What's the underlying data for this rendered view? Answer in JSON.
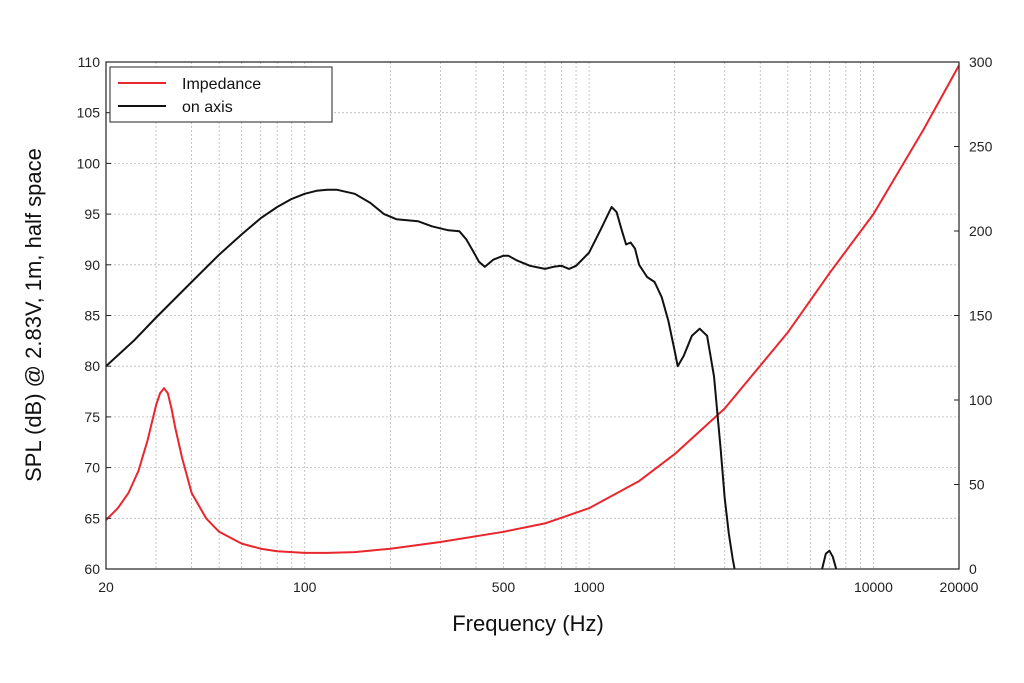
{
  "chart_data": {
    "type": "line",
    "xlabel": "Frequency (Hz)",
    "ylabel": "SPL (dB) @ 2.83V, 1m, half space",
    "x_scale": "log",
    "xlim": [
      20,
      20000
    ],
    "ylim": [
      60,
      110
    ],
    "y2lim": [
      0,
      300
    ],
    "x_tick_labels": [
      "20",
      "100",
      "500",
      "1000",
      "10000",
      "20000"
    ],
    "y_tick_labels": [
      "60",
      "65",
      "70",
      "75",
      "80",
      "85",
      "90",
      "95",
      "100",
      "105",
      "110"
    ],
    "y2_tick_labels": [
      "0",
      "50",
      "100",
      "150",
      "200",
      "250",
      "300"
    ],
    "grid": true,
    "legend_position": "top-left",
    "colors": {
      "impedance": "#e8262b",
      "spl": "#111111",
      "grid": "#b8b8b8"
    },
    "series": [
      {
        "name": "Impedance",
        "axis": "right",
        "color": "#e8262b",
        "points": [
          [
            20,
            29
          ],
          [
            22,
            36
          ],
          [
            24,
            45
          ],
          [
            26,
            58
          ],
          [
            28,
            76
          ],
          [
            30,
            97
          ],
          [
            31,
            104
          ],
          [
            32,
            107
          ],
          [
            33,
            104
          ],
          [
            34,
            95
          ],
          [
            35,
            84
          ],
          [
            37,
            66
          ],
          [
            40,
            45
          ],
          [
            45,
            30
          ],
          [
            50,
            22
          ],
          [
            60,
            15
          ],
          [
            70,
            12
          ],
          [
            80,
            10.5
          ],
          [
            100,
            9.5
          ],
          [
            120,
            9.5
          ],
          [
            150,
            10
          ],
          [
            200,
            12
          ],
          [
            300,
            16
          ],
          [
            500,
            22
          ],
          [
            700,
            27
          ],
          [
            1000,
            36
          ],
          [
            1500,
            52
          ],
          [
            2000,
            68
          ],
          [
            3000,
            95
          ],
          [
            5000,
            140
          ],
          [
            7000,
            175
          ],
          [
            10000,
            210
          ],
          [
            15000,
            260
          ],
          [
            20000,
            298
          ]
        ]
      },
      {
        "name": "on axis",
        "axis": "left",
        "color": "#111111",
        "segments": [
          [
            [
              20,
              80
            ],
            [
              25,
              82.5
            ],
            [
              30,
              84.8
            ],
            [
              40,
              88.3
            ],
            [
              50,
              91
            ],
            [
              60,
              93
            ],
            [
              70,
              94.6
            ],
            [
              80,
              95.7
            ],
            [
              90,
              96.5
            ],
            [
              100,
              97
            ],
            [
              110,
              97.3
            ],
            [
              120,
              97.4
            ],
            [
              130,
              97.4
            ],
            [
              150,
              97
            ],
            [
              170,
              96.1
            ],
            [
              190,
              95
            ],
            [
              210,
              94.5
            ],
            [
              250,
              94.3
            ],
            [
              280,
              93.8
            ],
            [
              320,
              93.4
            ],
            [
              350,
              93.3
            ],
            [
              370,
              92.5
            ],
            [
              390,
              91.4
            ],
            [
              410,
              90.3
            ],
            [
              430,
              89.8
            ],
            [
              460,
              90.5
            ],
            [
              500,
              90.9
            ],
            [
              520,
              90.9
            ],
            [
              560,
              90.4
            ],
            [
              620,
              89.9
            ],
            [
              700,
              89.6
            ],
            [
              750,
              89.8
            ],
            [
              800,
              89.9
            ],
            [
              850,
              89.6
            ],
            [
              900,
              89.9
            ],
            [
              1000,
              91.2
            ],
            [
              1100,
              93.5
            ],
            [
              1200,
              95.7
            ],
            [
              1250,
              95.2
            ],
            [
              1300,
              93.5
            ],
            [
              1350,
              92
            ],
            [
              1400,
              92.2
            ],
            [
              1450,
              91.6
            ],
            [
              1500,
              90
            ],
            [
              1600,
              88.8
            ],
            [
              1700,
              88.3
            ],
            [
              1800,
              86.8
            ],
            [
              1900,
              84.5
            ],
            [
              2000,
              81.5
            ],
            [
              2050,
              80
            ],
            [
              2150,
              81
            ],
            [
              2300,
              83
            ],
            [
              2450,
              83.7
            ],
            [
              2600,
              83
            ],
            [
              2750,
              79
            ],
            [
              2900,
              72
            ],
            [
              3000,
              67
            ],
            [
              3100,
              63.5
            ],
            [
              3200,
              61
            ],
            [
              3250,
              60
            ]
          ],
          [
            [
              6600,
              60
            ],
            [
              6800,
              61.5
            ],
            [
              7000,
              61.8
            ],
            [
              7200,
              61.2
            ],
            [
              7400,
              60
            ]
          ]
        ]
      }
    ]
  }
}
